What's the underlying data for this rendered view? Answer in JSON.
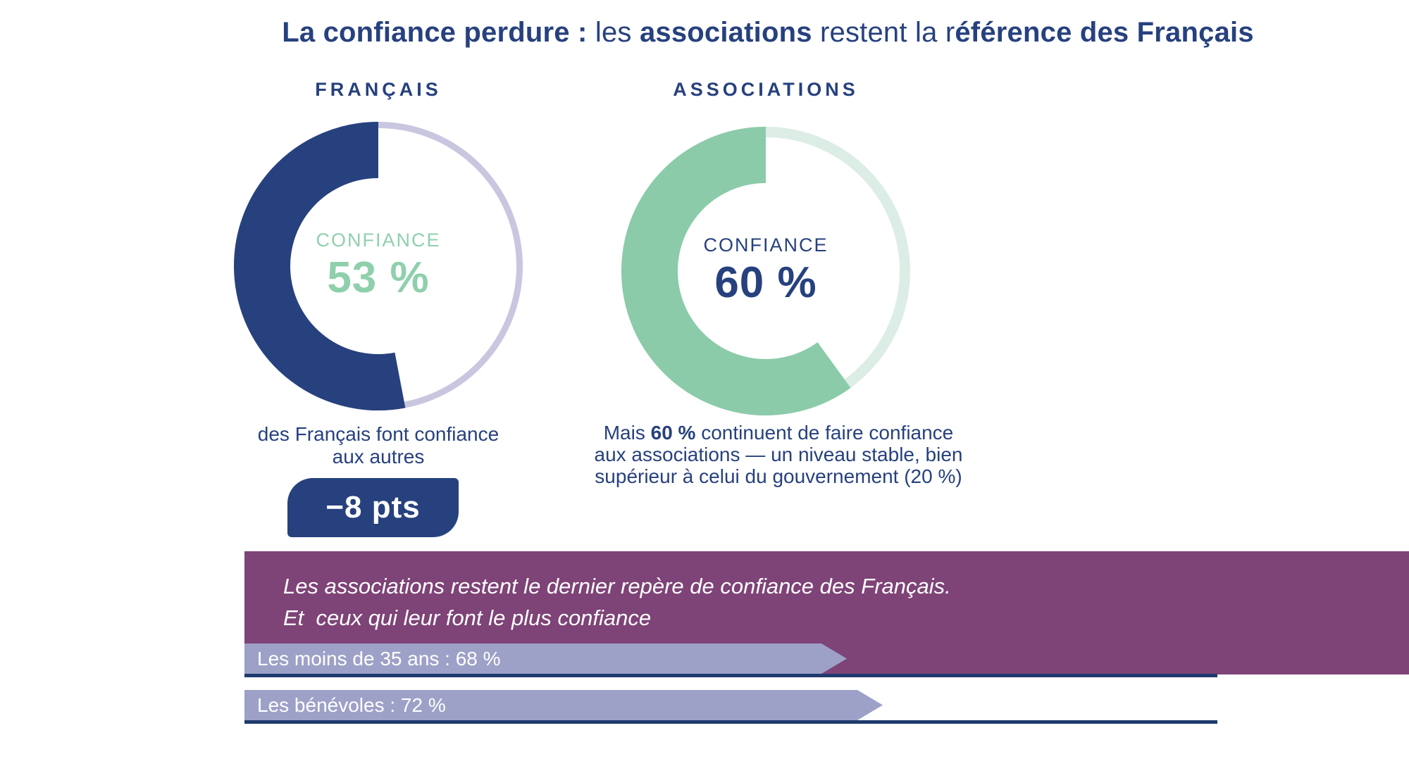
{
  "title": {
    "segments": [
      {
        "text": "La confiance perdure :",
        "bold": true
      },
      {
        "text": " les ",
        "bold": false
      },
      {
        "text": "associations",
        "bold": true
      },
      {
        "text": " restent la r",
        "bold": false
      },
      {
        "text": "éférence des Français",
        "bold": true
      }
    ]
  },
  "colors": {
    "navy": "#27417E",
    "green": "#8BCBA9",
    "green_text": "#8FD0AC",
    "lavender_ring": "#C9C6E0",
    "light_green_ring": "#DCEDE6",
    "purple_banner": "#7E4377",
    "bar_lavender": "#9DA1C7",
    "underline_navy": "#1E3A6E",
    "badge_navy": "#27417E"
  },
  "donuts": [
    {
      "name": "FRANÇAIS",
      "center_label": "CONFIANCE",
      "value": 53,
      "value_text": "53 %",
      "arc_color": "#27417E",
      "rest_ring_color": "#C9C6E0",
      "rest_ring_width": 9,
      "center_color": "#8FD0AC"
    },
    {
      "name": "ASSOCIATIONS",
      "center_label": "CONFIANCE",
      "value": 60,
      "value_text": "60 %",
      "arc_color": "#8BCBA9",
      "rest_ring_color": "#DCEDE6",
      "rest_ring_width": 15,
      "center_color": "#27417E"
    }
  ],
  "captions": {
    "left_lines": [
      "des Français font confiance",
      "aux autres"
    ],
    "right_lines": [
      [
        {
          "text": "Mais ",
          "bold": false
        },
        {
          "text": "60 %",
          "bold": true
        },
        {
          "text": " continuent de faire confiance",
          "bold": false
        }
      ],
      [
        {
          "text": "aux associations — un niveau stable, bien",
          "bold": false
        }
      ],
      [
        {
          "text": "supérieur à celui du gouvernement (20 %)",
          "bold": false
        }
      ]
    ]
  },
  "badge": {
    "label": "−8 pts"
  },
  "banner": {
    "lines": [
      "Les associations restent le dernier repère de confiance des Français.",
      "Et  ceux qui leur font le plus confiance"
    ]
  },
  "bars": [
    {
      "label": "Les moins de 35 ans : 68 %",
      "value": 68
    },
    {
      "label": "Les bénévoles : 72 %",
      "value": 72
    }
  ],
  "chart_data": [
    {
      "type": "pie",
      "title": "FRANÇAIS",
      "series": [
        {
          "name": "Confiance",
          "value": 53
        },
        {
          "name": "Reste",
          "value": 47
        }
      ],
      "center_label": "CONFIANCE 53 %",
      "annotation": "−8 pts",
      "caption": "des Français font confiance aux autres"
    },
    {
      "type": "pie",
      "title": "ASSOCIATIONS",
      "series": [
        {
          "name": "Confiance",
          "value": 60
        },
        {
          "name": "Reste",
          "value": 40
        }
      ],
      "center_label": "CONFIANCE 60 %",
      "caption": "Mais 60 % continuent de faire confiance aux associations — un niveau stable, bien supérieur à celui du gouvernement (20 %)"
    },
    {
      "type": "bar",
      "orientation": "horizontal",
      "unit": "%",
      "categories": [
        "Les moins de 35 ans",
        "Les bénévoles"
      ],
      "values": [
        68,
        72
      ],
      "title": "Les associations restent le dernier repère de confiance des Français. Et  ceux qui leur font le plus confiance"
    }
  ]
}
